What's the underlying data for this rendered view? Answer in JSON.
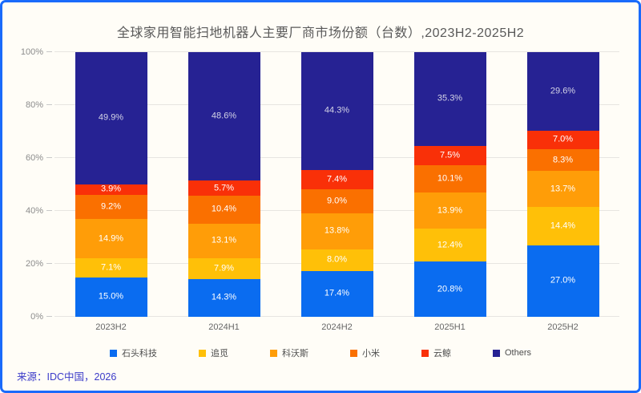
{
  "frame": {
    "border_color": "#1a6bfb",
    "background": "#fffdf7"
  },
  "title": "全球家用智能扫地机器人主要厂商市场份额（台数）,2023H2-2025H2",
  "source_note": "来源：IDC中国，2026",
  "chart_data": {
    "type": "bar",
    "stacked": true,
    "title": "全球家用智能扫地机器人主要厂商市场份额（台数）,2023H2-2025H2",
    "value_unit": "%",
    "categories": [
      "2023H2",
      "2024H1",
      "2024H2",
      "2025H1",
      "2025H2"
    ],
    "series": [
      {
        "name": "石头科技",
        "color": "#0a6cf0",
        "values": [
          15.0,
          14.3,
          17.4,
          20.8,
          27.0
        ]
      },
      {
        "name": "追觅",
        "color": "#ffc008",
        "values": [
          7.1,
          7.9,
          8.0,
          12.4,
          14.4
        ]
      },
      {
        "name": "科沃斯",
        "color": "#ff9d08",
        "values": [
          14.9,
          13.1,
          13.8,
          13.9,
          13.7
        ]
      },
      {
        "name": "小米",
        "color": "#fa7000",
        "values": [
          9.2,
          10.4,
          9.0,
          10.1,
          8.3
        ]
      },
      {
        "name": "云鲸",
        "color": "#f93008",
        "values": [
          3.9,
          5.7,
          7.4,
          7.5,
          7.0
        ]
      },
      {
        "name": "Others",
        "color": "#262293",
        "values": [
          49.9,
          48.6,
          44.3,
          35.3,
          29.6
        ]
      }
    ],
    "y_ticks": [
      "0%",
      "20%",
      "40%",
      "60%",
      "80%",
      "100%"
    ],
    "ylim": [
      0,
      100
    ],
    "grid": true,
    "legend_position": "bottom"
  }
}
